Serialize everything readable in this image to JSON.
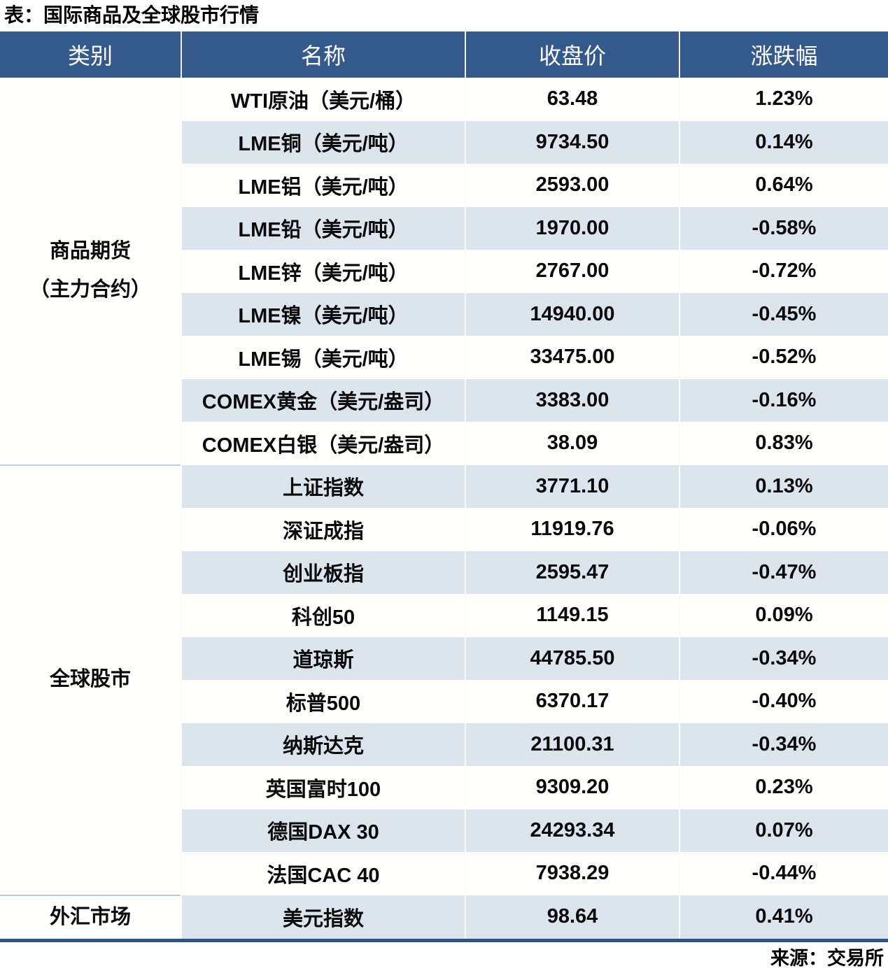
{
  "title": "表：国际商品及全球股市行情",
  "source": "来源：交易所",
  "colors": {
    "header_bg": "#35598b",
    "header_text": "#ffffff",
    "stripe_blue": "#dce4ee",
    "row_white": "#fffffe",
    "positive_red": "#c00000",
    "negative_green": "#538135",
    "bottom_border": "#2e5481",
    "group_divider": "#bfcdda"
  },
  "table": {
    "columns": [
      "类别",
      "名称",
      "收盘价",
      "涨跌幅"
    ],
    "groups": [
      {
        "category_lines": [
          "商品期货",
          "（主力合约）"
        ],
        "rows": [
          {
            "name": "WTI原油（美元/桶）",
            "close": "63.48",
            "change": "1.23%"
          },
          {
            "name": "LME铜（美元/吨）",
            "close": "9734.50",
            "change": "0.14%"
          },
          {
            "name": "LME铝（美元/吨）",
            "close": "2593.00",
            "change": "0.64%"
          },
          {
            "name": "LME铅（美元/吨）",
            "close": "1970.00",
            "change": "-0.58%"
          },
          {
            "name": "LME锌（美元/吨）",
            "close": "2767.00",
            "change": "-0.72%"
          },
          {
            "name": "LME镍（美元/吨）",
            "close": "14940.00",
            "change": "-0.45%"
          },
          {
            "name": "LME锡（美元/吨）",
            "close": "33475.00",
            "change": "-0.52%"
          },
          {
            "name": "COMEX黄金（美元/盎司）",
            "close": "3383.00",
            "change": "-0.16%"
          },
          {
            "name": "COMEX白银（美元/盎司）",
            "close": "38.09",
            "change": "0.83%"
          }
        ]
      },
      {
        "category_lines": [
          "全球股市"
        ],
        "rows": [
          {
            "name": "上证指数",
            "close": "3771.10",
            "change": "0.13%"
          },
          {
            "name": "深证成指",
            "close": "11919.76",
            "change": "-0.06%"
          },
          {
            "name": "创业板指",
            "close": "2595.47",
            "change": "-0.47%"
          },
          {
            "name": "科创50",
            "close": "1149.15",
            "change": "0.09%"
          },
          {
            "name": "道琼斯",
            "close": "44785.50",
            "change": "-0.34%"
          },
          {
            "name": "标普500",
            "close": "6370.17",
            "change": "-0.40%"
          },
          {
            "name": "纳斯达克",
            "close": "21100.31",
            "change": "-0.34%"
          },
          {
            "name": "英国富时100",
            "close": "9309.20",
            "change": "0.23%"
          },
          {
            "name": "德国DAX 30",
            "close": "24293.34",
            "change": "0.07%"
          },
          {
            "name": "法国CAC 40",
            "close": "7938.29",
            "change": "-0.44%"
          }
        ]
      },
      {
        "category_lines": [
          "外汇市场"
        ],
        "rows": [
          {
            "name": "美元指数",
            "close": "98.64",
            "change": "0.41%"
          }
        ]
      }
    ]
  }
}
